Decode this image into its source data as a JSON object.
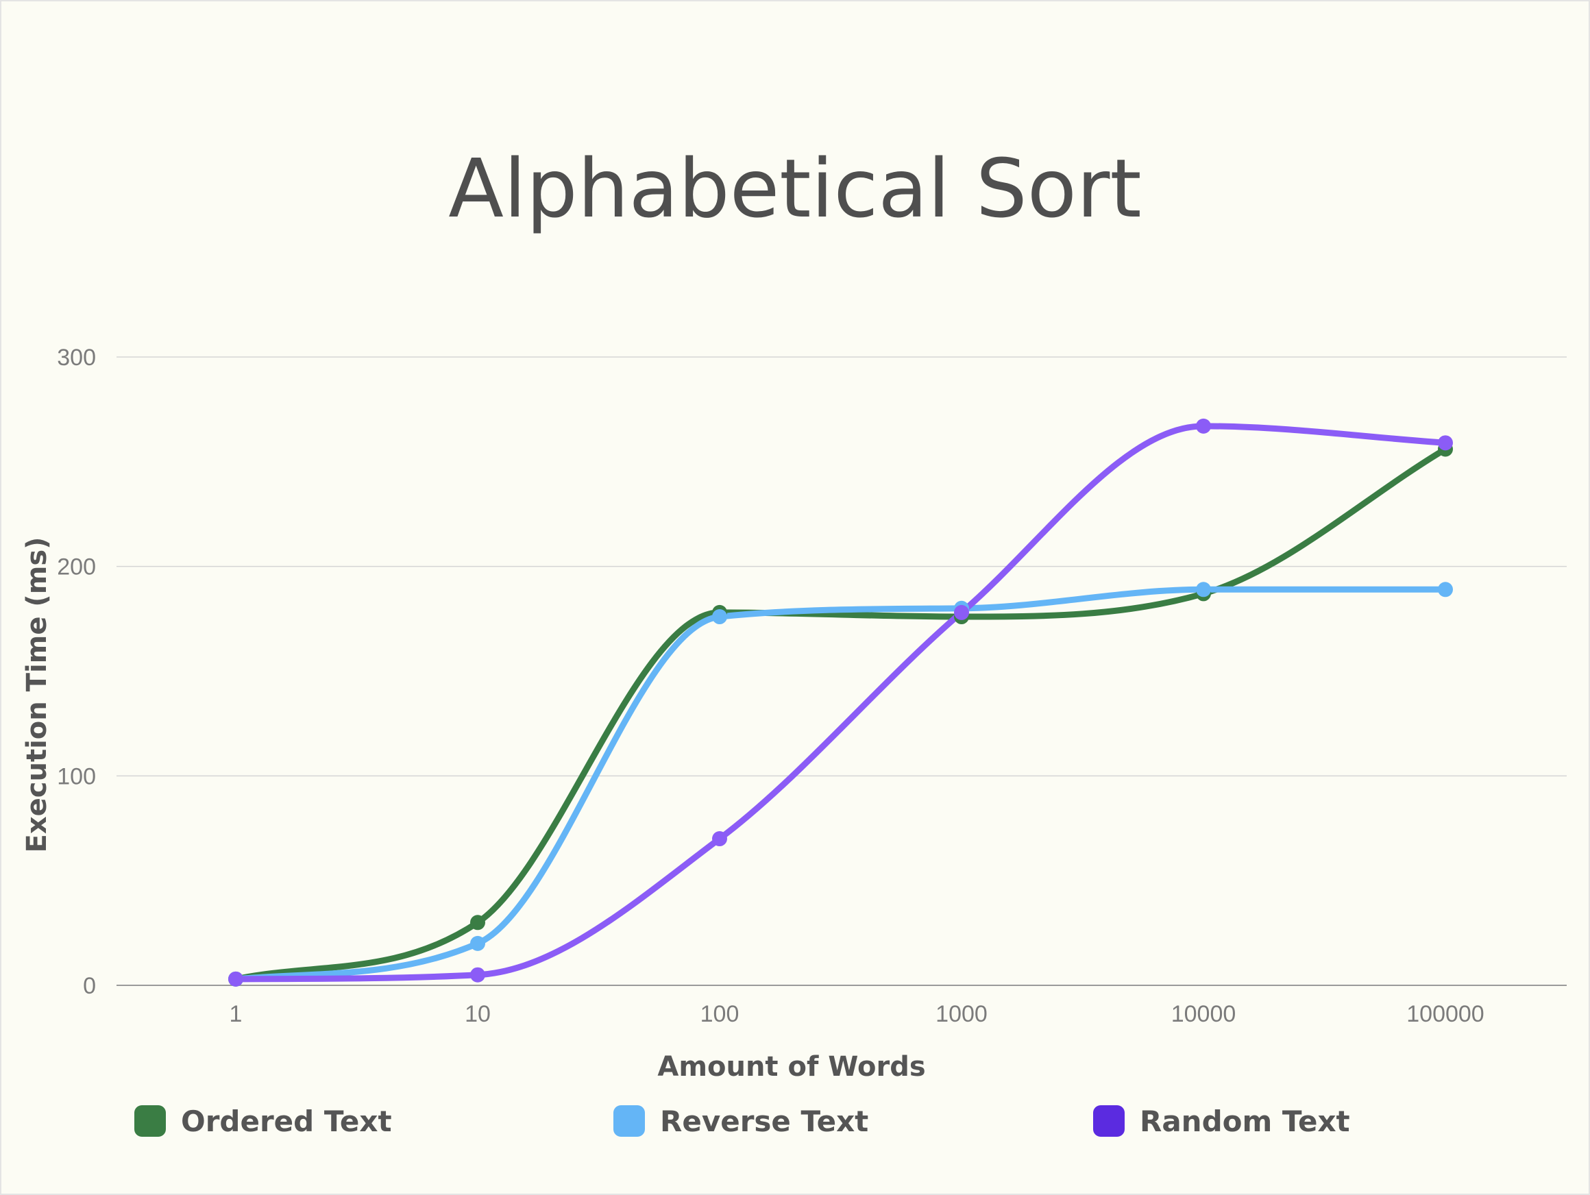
{
  "chart_data": {
    "type": "line",
    "title": "Alphabetical Sort",
    "xlabel": "Amount of Words",
    "ylabel": "Execution Time (ms)",
    "categories": [
      "1",
      "10",
      "100",
      "1000",
      "10000",
      "100000"
    ],
    "y_ticks": [
      "0",
      "100",
      "200",
      "300"
    ],
    "ylim": [
      0,
      300
    ],
    "grid": true,
    "legend_position": "bottom",
    "series": [
      {
        "name": "Ordered Text",
        "color": "#3a7d44",
        "legend_color": "#3a7d44",
        "values": [
          3,
          30,
          178,
          176,
          187,
          256
        ]
      },
      {
        "name": "Reverse Text",
        "color": "#64b5f6",
        "legend_color": "#64b5f6",
        "values": [
          3,
          20,
          176,
          180,
          189,
          189
        ]
      },
      {
        "name": "Random Text",
        "color": "#8b5cf6",
        "legend_color": "#5b2be0",
        "values": [
          3,
          5,
          70,
          178,
          267,
          259
        ]
      }
    ]
  }
}
